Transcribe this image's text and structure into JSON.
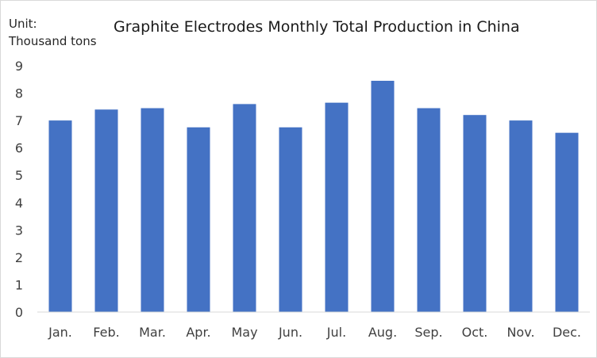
{
  "chart_data": {
    "type": "bar",
    "title": "Graphite Electrodes Monthly Total Production in China",
    "unit_label": [
      "Unit:",
      "Thousand tons"
    ],
    "categories": [
      "Jan.",
      "Feb.",
      "Mar.",
      "Apr.",
      "May",
      "Jun.",
      "Jul.",
      "Aug.",
      "Sep.",
      "Oct.",
      "Nov.",
      "Dec."
    ],
    "values": [
      7.0,
      7.4,
      7.45,
      6.75,
      7.6,
      6.75,
      7.65,
      8.45,
      7.45,
      7.2,
      7.0,
      6.55
    ],
    "ylim": [
      0,
      9
    ],
    "yticks": [
      0,
      1,
      2,
      3,
      4,
      5,
      6,
      7,
      8,
      9
    ],
    "xlabel": "",
    "ylabel": "",
    "grid": false,
    "legend": "none",
    "bar_color": "#4472c4"
  }
}
